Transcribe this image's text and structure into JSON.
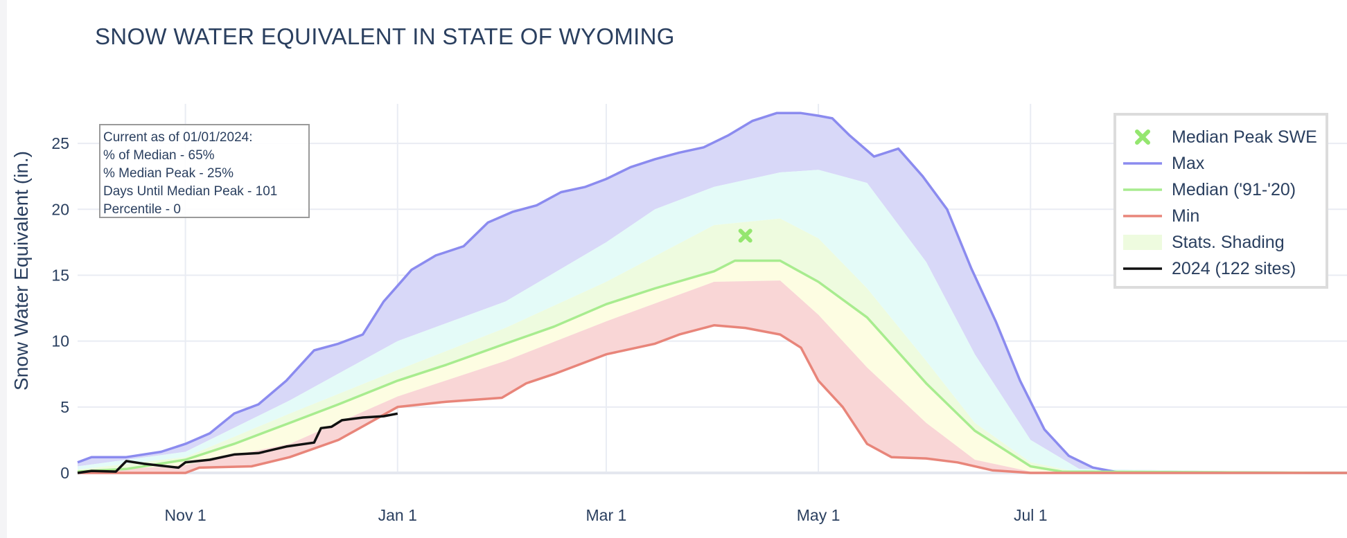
{
  "chart_data": {
    "type": "area",
    "title": "SNOW WATER EQUIVALENT IN STATE OF WYOMING",
    "ylabel": "Snow Water Equivalent (in.)",
    "xlabel": "",
    "ylim": [
      0,
      28
    ],
    "xlim": [
      "2023-10-01",
      "2024-09-30"
    ],
    "yticks": [
      0,
      5,
      10,
      15,
      20,
      25
    ],
    "xticks": [
      {
        "date": "2023-11-01",
        "label": "Nov  1"
      },
      {
        "date": "2024-01-01",
        "label": "Jan  1"
      },
      {
        "date": "2024-03-01",
        "label": "Mar  1"
      },
      {
        "date": "2024-05-01",
        "label": "May  1"
      },
      {
        "date": "2024-07-01",
        "label": "Jul  1"
      }
    ],
    "grid": true,
    "legend_position": "top-right",
    "series": [
      {
        "name": "Max",
        "color": "#8b8bef",
        "points": [
          [
            "2023-10-01",
            0.8
          ],
          [
            "2023-10-05",
            1.2
          ],
          [
            "2023-10-15",
            1.2
          ],
          [
            "2023-10-25",
            1.6
          ],
          [
            "2023-11-01",
            2.2
          ],
          [
            "2023-11-08",
            3.0
          ],
          [
            "2023-11-15",
            4.5
          ],
          [
            "2023-11-22",
            5.2
          ],
          [
            "2023-11-30",
            7.0
          ],
          [
            "2023-12-08",
            9.3
          ],
          [
            "2023-12-15",
            9.8
          ],
          [
            "2023-12-22",
            10.5
          ],
          [
            "2023-12-28",
            13.0
          ],
          [
            "2024-01-01",
            14.2
          ],
          [
            "2024-01-05",
            15.4
          ],
          [
            "2024-01-12",
            16.5
          ],
          [
            "2024-01-20",
            17.2
          ],
          [
            "2024-01-27",
            19.0
          ],
          [
            "2024-02-03",
            19.8
          ],
          [
            "2024-02-10",
            20.3
          ],
          [
            "2024-02-17",
            21.3
          ],
          [
            "2024-02-24",
            21.7
          ],
          [
            "2024-03-01",
            22.3
          ],
          [
            "2024-03-08",
            23.2
          ],
          [
            "2024-03-15",
            23.8
          ],
          [
            "2024-03-22",
            24.3
          ],
          [
            "2024-03-29",
            24.7
          ],
          [
            "2024-04-05",
            25.6
          ],
          [
            "2024-04-12",
            26.7
          ],
          [
            "2024-04-19",
            27.3
          ],
          [
            "2024-04-26",
            27.3
          ],
          [
            "2024-05-01",
            27.1
          ],
          [
            "2024-05-05",
            26.9
          ],
          [
            "2024-05-10",
            25.6
          ],
          [
            "2024-05-17",
            24.0
          ],
          [
            "2024-05-24",
            24.6
          ],
          [
            "2024-05-31",
            22.5
          ],
          [
            "2024-06-07",
            20.0
          ],
          [
            "2024-06-14",
            15.5
          ],
          [
            "2024-06-21",
            11.5
          ],
          [
            "2024-06-28",
            7.0
          ],
          [
            "2024-07-05",
            3.3
          ],
          [
            "2024-07-12",
            1.3
          ],
          [
            "2024-07-19",
            0.4
          ],
          [
            "2024-07-26",
            0.05
          ],
          [
            "2024-09-30",
            0.0
          ]
        ]
      },
      {
        "name": "Median ('91-'20)",
        "color": "#a8ec8f",
        "points": [
          [
            "2023-10-01",
            0.1
          ],
          [
            "2023-10-15",
            0.3
          ],
          [
            "2023-11-01",
            1.0
          ],
          [
            "2023-11-15",
            2.2
          ],
          [
            "2023-12-01",
            3.8
          ],
          [
            "2023-12-15",
            5.2
          ],
          [
            "2024-01-01",
            7.0
          ],
          [
            "2024-01-15",
            8.2
          ],
          [
            "2024-02-01",
            9.8
          ],
          [
            "2024-02-15",
            11.1
          ],
          [
            "2024-03-01",
            12.8
          ],
          [
            "2024-03-15",
            14.0
          ],
          [
            "2024-04-01",
            15.3
          ],
          [
            "2024-04-07",
            16.1
          ],
          [
            "2024-04-20",
            16.1
          ],
          [
            "2024-05-01",
            14.5
          ],
          [
            "2024-05-15",
            11.8
          ],
          [
            "2024-06-01",
            6.8
          ],
          [
            "2024-06-15",
            3.2
          ],
          [
            "2024-07-01",
            0.5
          ],
          [
            "2024-07-10",
            0.1
          ],
          [
            "2024-09-30",
            0.0
          ]
        ]
      },
      {
        "name": "Min",
        "color": "#e8857a",
        "points": [
          [
            "2023-10-01",
            0.0
          ],
          [
            "2023-11-01",
            0.0
          ],
          [
            "2023-11-05",
            0.4
          ],
          [
            "2023-11-20",
            0.5
          ],
          [
            "2023-12-01",
            1.2
          ],
          [
            "2023-12-15",
            2.5
          ],
          [
            "2024-01-01",
            5.0
          ],
          [
            "2024-01-15",
            5.4
          ],
          [
            "2024-01-31",
            5.7
          ],
          [
            "2024-02-07",
            6.8
          ],
          [
            "2024-02-15",
            7.5
          ],
          [
            "2024-03-01",
            9.0
          ],
          [
            "2024-03-15",
            9.8
          ],
          [
            "2024-03-22",
            10.5
          ],
          [
            "2024-04-01",
            11.2
          ],
          [
            "2024-04-10",
            11.0
          ],
          [
            "2024-04-20",
            10.5
          ],
          [
            "2024-04-26",
            9.5
          ],
          [
            "2024-05-01",
            7.0
          ],
          [
            "2024-05-08",
            5.0
          ],
          [
            "2024-05-15",
            2.2
          ],
          [
            "2024-05-22",
            1.2
          ],
          [
            "2024-06-01",
            1.1
          ],
          [
            "2024-06-10",
            0.8
          ],
          [
            "2024-06-20",
            0.2
          ],
          [
            "2024-07-01",
            0.0
          ],
          [
            "2024-09-30",
            0.0
          ]
        ]
      },
      {
        "name": "2024 (122 sites)",
        "color": "#111111",
        "points": [
          [
            "2023-10-01",
            0.0
          ],
          [
            "2023-10-05",
            0.15
          ],
          [
            "2023-10-12",
            0.1
          ],
          [
            "2023-10-15",
            0.9
          ],
          [
            "2023-10-20",
            0.7
          ],
          [
            "2023-10-30",
            0.4
          ],
          [
            "2023-11-01",
            0.8
          ],
          [
            "2023-11-08",
            1.0
          ],
          [
            "2023-11-15",
            1.4
          ],
          [
            "2023-11-22",
            1.5
          ],
          [
            "2023-11-30",
            2.0
          ],
          [
            "2023-12-08",
            2.3
          ],
          [
            "2023-12-10",
            3.4
          ],
          [
            "2023-12-13",
            3.5
          ],
          [
            "2023-12-16",
            4.0
          ],
          [
            "2023-12-22",
            4.2
          ],
          [
            "2023-12-28",
            4.3
          ],
          [
            "2024-01-01",
            4.5
          ]
        ]
      },
      {
        "name": "Median Peak SWE",
        "color": "#94e66f",
        "points": [
          [
            "2024-04-10",
            18.0
          ]
        ]
      }
    ],
    "shading_name": "Stats. Shading",
    "shading_bands": [
      {
        "color": "#d8d8f8",
        "between": [
          "Max",
          "90th"
        ]
      },
      {
        "color": "#e4fbf8",
        "between": [
          "90th",
          "70th"
        ]
      },
      {
        "color": "#eefbdf",
        "between": [
          "70th",
          "50th"
        ]
      },
      {
        "color": "#fdfde2",
        "between": [
          "50th",
          "30th"
        ]
      },
      {
        "color": "#f9d6d6",
        "between": [
          "30th",
          "Min"
        ]
      }
    ],
    "percentiles": {
      "90th": [
        [
          "2023-10-01",
          0.5
        ],
        [
          "2023-11-01",
          1.6
        ],
        [
          "2023-12-01",
          5.5
        ],
        [
          "2024-01-01",
          10.0
        ],
        [
          "2024-02-01",
          13.0
        ],
        [
          "2024-03-01",
          17.5
        ],
        [
          "2024-03-15",
          20.0
        ],
        [
          "2024-04-01",
          21.7
        ],
        [
          "2024-04-20",
          22.8
        ],
        [
          "2024-05-01",
          23.0
        ],
        [
          "2024-05-15",
          22.0
        ],
        [
          "2024-06-01",
          16.0
        ],
        [
          "2024-06-15",
          9.0
        ],
        [
          "2024-07-01",
          2.5
        ],
        [
          "2024-07-15",
          0.3
        ],
        [
          "2024-09-30",
          0.0
        ]
      ],
      "70th": [
        [
          "2023-10-01",
          0.25
        ],
        [
          "2023-11-01",
          1.2
        ],
        [
          "2023-12-01",
          4.5
        ],
        [
          "2024-01-01",
          7.8
        ],
        [
          "2024-02-01",
          11.0
        ],
        [
          "2024-03-01",
          14.5
        ],
        [
          "2024-04-01",
          18.8
        ],
        [
          "2024-04-20",
          19.3
        ],
        [
          "2024-05-01",
          17.8
        ],
        [
          "2024-05-15",
          14.0
        ],
        [
          "2024-06-01",
          8.5
        ],
        [
          "2024-06-15",
          3.8
        ],
        [
          "2024-07-01",
          0.8
        ],
        [
          "2024-07-15",
          0.05
        ],
        [
          "2024-09-30",
          0.0
        ]
      ],
      "50th": [
        [
          "2023-10-01",
          0.1
        ],
        [
          "2023-10-15",
          0.3
        ],
        [
          "2023-11-01",
          1.0
        ],
        [
          "2023-11-15",
          2.2
        ],
        [
          "2023-12-01",
          3.8
        ],
        [
          "2023-12-15",
          5.2
        ],
        [
          "2024-01-01",
          7.0
        ],
        [
          "2024-01-15",
          8.2
        ],
        [
          "2024-02-01",
          9.8
        ],
        [
          "2024-02-15",
          11.1
        ],
        [
          "2024-03-01",
          12.8
        ],
        [
          "2024-03-15",
          14.0
        ],
        [
          "2024-04-01",
          15.3
        ],
        [
          "2024-04-07",
          16.1
        ],
        [
          "2024-04-20",
          16.1
        ],
        [
          "2024-05-01",
          14.5
        ],
        [
          "2024-05-15",
          11.8
        ],
        [
          "2024-06-01",
          6.8
        ],
        [
          "2024-06-15",
          3.2
        ],
        [
          "2024-07-01",
          0.5
        ],
        [
          "2024-07-10",
          0.1
        ],
        [
          "2024-09-30",
          0.0
        ]
      ],
      "30th": [
        [
          "2023-10-01",
          0.05
        ],
        [
          "2023-11-01",
          0.6
        ],
        [
          "2023-12-01",
          2.2
        ],
        [
          "2024-01-01",
          5.8
        ],
        [
          "2024-02-01",
          8.5
        ],
        [
          "2024-03-01",
          11.5
        ],
        [
          "2024-04-01",
          14.5
        ],
        [
          "2024-04-20",
          14.6
        ],
        [
          "2024-05-01",
          12.0
        ],
        [
          "2024-05-15",
          8.0
        ],
        [
          "2024-06-01",
          3.8
        ],
        [
          "2024-06-15",
          1.0
        ],
        [
          "2024-07-01",
          0.1
        ],
        [
          "2024-09-30",
          0.0
        ]
      ]
    },
    "annotation": {
      "lines": [
        "Current as of 01/01/2024:",
        "% of Median - 65%",
        "% Median Peak - 25%",
        "Days Until Median Peak - 101",
        "Percentile - 0"
      ]
    },
    "legend": [
      {
        "key": "peak",
        "label": "Median Peak SWE"
      },
      {
        "key": "max",
        "label": "Max"
      },
      {
        "key": "median",
        "label": "Median ('91-'20)"
      },
      {
        "key": "min",
        "label": "Min"
      },
      {
        "key": "shade",
        "label": "Stats. Shading"
      },
      {
        "key": "current",
        "label": "2024 (122 sites)"
      }
    ],
    "colors": {
      "axis_text": "#2a3f5f",
      "grid": "#e9ecf3",
      "legend_border": "#dcdcdc",
      "annotation_border": "#9a9a9a"
    }
  }
}
